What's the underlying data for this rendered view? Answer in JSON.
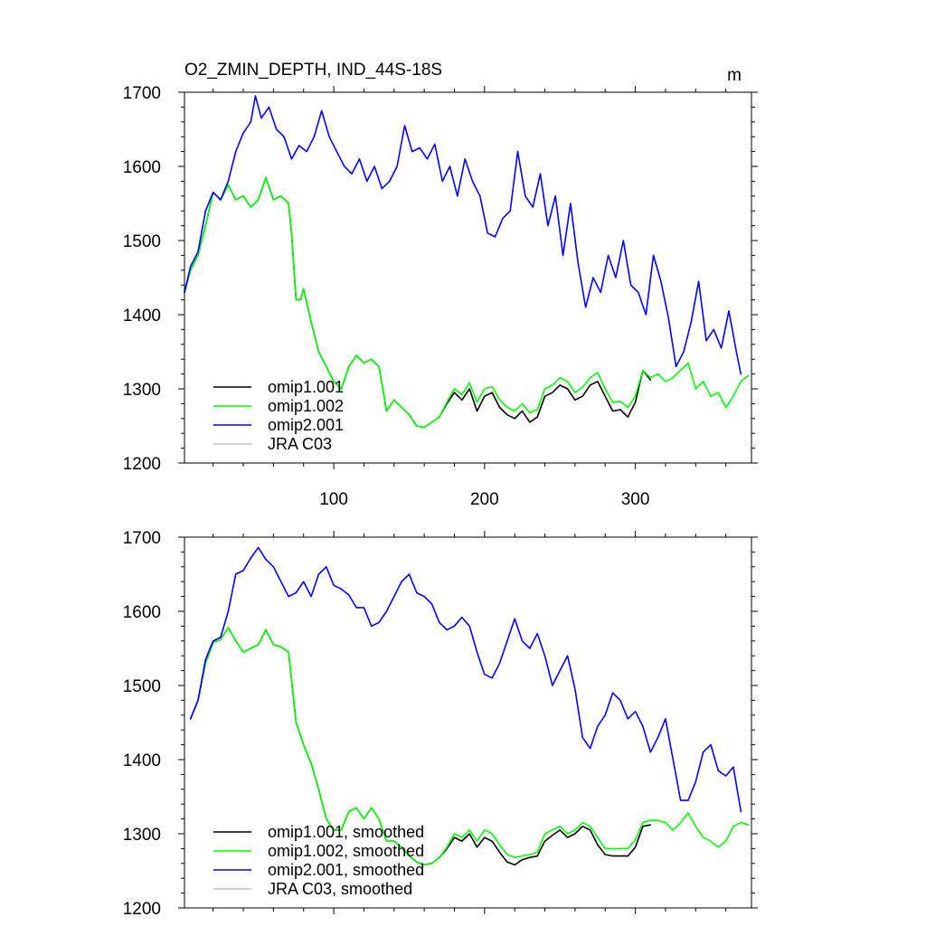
{
  "chart_data": [
    {
      "type": "line",
      "panel": "top",
      "title": "O2_ZMIN_DEPTH, IND_44S-18S",
      "units": "m",
      "xlabel": "",
      "ylabel": "",
      "xlim": [
        1,
        377
      ],
      "ylim": [
        1200,
        1700
      ],
      "xticks": [
        100,
        200,
        300
      ],
      "xtick_labels": [
        "100",
        "200",
        "300"
      ],
      "yticks": [
        1200,
        1300,
        1400,
        1500,
        1600,
        1700
      ],
      "ytick_labels": [
        "1200",
        "1300",
        "1400",
        "1500",
        "1600",
        "1700"
      ],
      "legend_position": "bottom-left",
      "series": [
        {
          "name": "omip1.001",
          "color": "#000000",
          "x": [
            1,
            5,
            10,
            15,
            20,
            25,
            30,
            35,
            40,
            45,
            50,
            55,
            60,
            65,
            70,
            72,
            75,
            78,
            80,
            85,
            90,
            95,
            100,
            105,
            110,
            115,
            120,
            125,
            130,
            135,
            140,
            145,
            150,
            155,
            160,
            165,
            170,
            175,
            180,
            185,
            190,
            195,
            200,
            205,
            210,
            215,
            220,
            225,
            230,
            235,
            240,
            245,
            250,
            255,
            260,
            265,
            270,
            275,
            280,
            285,
            290,
            295,
            300,
            305,
            310
          ],
          "y": [
            1430,
            1460,
            1480,
            1520,
            1565,
            1555,
            1575,
            1555,
            1560,
            1545,
            1555,
            1585,
            1555,
            1560,
            1550,
            1510,
            1420,
            1420,
            1435,
            1390,
            1350,
            1330,
            1310,
            1300,
            1330,
            1345,
            1335,
            1340,
            1330,
            1270,
            1285,
            1275,
            1265,
            1250,
            1248,
            1255,
            1262,
            1280,
            1295,
            1285,
            1300,
            1270,
            1290,
            1295,
            1275,
            1265,
            1260,
            1270,
            1255,
            1262,
            1290,
            1295,
            1305,
            1300,
            1285,
            1290,
            1305,
            1310,
            1290,
            1270,
            1272,
            1262,
            1282,
            1325,
            1312
          ]
        },
        {
          "name": "omip1.002",
          "color": "#00ff00",
          "x": [
            1,
            5,
            10,
            15,
            20,
            25,
            30,
            35,
            40,
            45,
            50,
            55,
            60,
            65,
            70,
            72,
            75,
            78,
            80,
            85,
            90,
            95,
            100,
            105,
            110,
            115,
            120,
            125,
            130,
            135,
            140,
            145,
            150,
            155,
            160,
            165,
            170,
            175,
            180,
            185,
            190,
            195,
            200,
            205,
            210,
            215,
            220,
            225,
            230,
            235,
            240,
            245,
            250,
            255,
            260,
            265,
            270,
            275,
            280,
            285,
            290,
            295,
            300,
            305,
            310,
            315,
            320,
            325,
            330,
            335,
            340,
            345,
            350,
            355,
            360,
            365,
            370,
            375
          ],
          "y": [
            1430,
            1460,
            1480,
            1520,
            1565,
            1555,
            1575,
            1555,
            1560,
            1545,
            1555,
            1585,
            1555,
            1560,
            1550,
            1510,
            1420,
            1420,
            1435,
            1390,
            1350,
            1330,
            1310,
            1300,
            1330,
            1345,
            1335,
            1340,
            1330,
            1270,
            1285,
            1275,
            1265,
            1250,
            1248,
            1255,
            1262,
            1282,
            1300,
            1292,
            1308,
            1282,
            1300,
            1303,
            1285,
            1275,
            1270,
            1280,
            1268,
            1272,
            1300,
            1305,
            1315,
            1310,
            1295,
            1302,
            1315,
            1322,
            1300,
            1282,
            1283,
            1275,
            1290,
            1325,
            1315,
            1320,
            1310,
            1315,
            1325,
            1335,
            1300,
            1310,
            1290,
            1295,
            1275,
            1290,
            1310,
            1318
          ]
        },
        {
          "name": "omip2.001",
          "color": "#0000ff",
          "x": [
            1,
            5,
            10,
            15,
            20,
            25,
            30,
            35,
            40,
            45,
            48,
            52,
            57,
            62,
            67,
            72,
            77,
            82,
            87,
            92,
            97,
            102,
            107,
            112,
            117,
            122,
            127,
            132,
            137,
            142,
            147,
            152,
            157,
            162,
            167,
            172,
            177,
            182,
            187,
            192,
            197,
            202,
            207,
            212,
            217,
            222,
            227,
            232,
            237,
            242,
            247,
            252,
            257,
            262,
            267,
            272,
            277,
            282,
            287,
            292,
            297,
            302,
            307,
            312,
            317,
            322,
            327,
            332,
            337,
            342,
            347,
            352,
            357,
            362,
            367,
            370
          ],
          "y": [
            1430,
            1465,
            1485,
            1540,
            1565,
            1555,
            1580,
            1620,
            1645,
            1660,
            1695,
            1665,
            1680,
            1650,
            1640,
            1610,
            1628,
            1620,
            1640,
            1675,
            1640,
            1620,
            1600,
            1590,
            1610,
            1580,
            1600,
            1570,
            1580,
            1600,
            1655,
            1620,
            1625,
            1610,
            1630,
            1580,
            1600,
            1560,
            1610,
            1580,
            1560,
            1510,
            1505,
            1530,
            1540,
            1620,
            1560,
            1545,
            1590,
            1520,
            1560,
            1480,
            1550,
            1470,
            1410,
            1450,
            1430,
            1480,
            1450,
            1500,
            1440,
            1430,
            1400,
            1480,
            1445,
            1395,
            1330,
            1350,
            1390,
            1445,
            1365,
            1380,
            1355,
            1405,
            1350,
            1320
          ]
        },
        {
          "name": "JRA C03",
          "color": "#c0c0c0",
          "x": [],
          "y": []
        }
      ]
    },
    {
      "type": "line",
      "panel": "bottom",
      "title": "",
      "xlabel": "",
      "ylabel": "",
      "xlim": [
        1,
        377
      ],
      "ylim": [
        1200,
        1700
      ],
      "xticks": [
        100,
        200,
        300
      ],
      "xtick_labels": [],
      "yticks": [
        1200,
        1300,
        1400,
        1500,
        1600,
        1700
      ],
      "ytick_labels": [
        "1200",
        "1300",
        "1400",
        "1500",
        "1600",
        "1700"
      ],
      "legend_position": "bottom-left",
      "series": [
        {
          "name": "omip1.001, smoothed",
          "color": "#000000",
          "x": [
            5,
            10,
            15,
            20,
            25,
            30,
            35,
            40,
            45,
            50,
            55,
            60,
            65,
            70,
            75,
            80,
            85,
            90,
            95,
            100,
            105,
            110,
            115,
            120,
            125,
            130,
            135,
            140,
            145,
            150,
            155,
            160,
            165,
            170,
            175,
            180,
            185,
            190,
            195,
            200,
            205,
            210,
            215,
            220,
            225,
            230,
            235,
            240,
            245,
            250,
            255,
            260,
            265,
            270,
            275,
            280,
            285,
            290,
            295,
            300,
            305,
            310
          ],
          "y": [
            1455,
            1480,
            1530,
            1558,
            1562,
            1578,
            1560,
            1545,
            1550,
            1555,
            1575,
            1555,
            1552,
            1545,
            1450,
            1420,
            1395,
            1360,
            1320,
            1305,
            1305,
            1330,
            1335,
            1320,
            1335,
            1320,
            1290,
            1290,
            1282,
            1270,
            1262,
            1258,
            1260,
            1268,
            1280,
            1295,
            1290,
            1300,
            1282,
            1295,
            1290,
            1275,
            1262,
            1258,
            1265,
            1268,
            1270,
            1290,
            1298,
            1305,
            1295,
            1300,
            1310,
            1305,
            1285,
            1272,
            1270,
            1270,
            1270,
            1282,
            1310,
            1312
          ]
        },
        {
          "name": "omip1.002, smoothed",
          "color": "#00ff00",
          "x": [
            5,
            10,
            15,
            20,
            25,
            30,
            35,
            40,
            45,
            50,
            55,
            60,
            65,
            70,
            75,
            80,
            85,
            90,
            95,
            100,
            105,
            110,
            115,
            120,
            125,
            130,
            135,
            140,
            145,
            150,
            155,
            160,
            165,
            170,
            175,
            180,
            185,
            190,
            195,
            200,
            205,
            210,
            215,
            220,
            225,
            230,
            235,
            240,
            245,
            250,
            255,
            260,
            265,
            270,
            275,
            280,
            285,
            290,
            295,
            300,
            305,
            310,
            315,
            320,
            325,
            330,
            335,
            340,
            345,
            350,
            355,
            360,
            365,
            370,
            375
          ],
          "y": [
            1455,
            1480,
            1530,
            1558,
            1562,
            1578,
            1560,
            1545,
            1550,
            1555,
            1575,
            1555,
            1552,
            1545,
            1450,
            1420,
            1395,
            1360,
            1320,
            1305,
            1305,
            1330,
            1335,
            1320,
            1335,
            1320,
            1290,
            1290,
            1282,
            1270,
            1262,
            1258,
            1260,
            1268,
            1282,
            1300,
            1295,
            1305,
            1290,
            1305,
            1300,
            1285,
            1272,
            1268,
            1270,
            1272,
            1275,
            1300,
            1305,
            1310,
            1300,
            1305,
            1315,
            1310,
            1295,
            1280,
            1280,
            1280,
            1280,
            1292,
            1315,
            1318,
            1318,
            1315,
            1305,
            1315,
            1328,
            1310,
            1295,
            1290,
            1282,
            1290,
            1310,
            1315,
            1312
          ]
        },
        {
          "name": "omip2.001, smoothed",
          "color": "#0000ff",
          "x": [
            5,
            10,
            15,
            20,
            25,
            30,
            35,
            40,
            45,
            50,
            55,
            60,
            65,
            70,
            75,
            80,
            85,
            90,
            95,
            100,
            105,
            110,
            115,
            120,
            125,
            130,
            135,
            140,
            145,
            150,
            155,
            160,
            165,
            170,
            175,
            180,
            185,
            190,
            195,
            200,
            205,
            210,
            215,
            220,
            225,
            230,
            235,
            240,
            245,
            250,
            255,
            260,
            265,
            270,
            275,
            280,
            285,
            290,
            295,
            300,
            305,
            310,
            315,
            320,
            325,
            330,
            335,
            340,
            345,
            350,
            355,
            360,
            365,
            370
          ],
          "y": [
            1455,
            1480,
            1535,
            1560,
            1565,
            1600,
            1650,
            1655,
            1672,
            1686,
            1670,
            1660,
            1640,
            1620,
            1625,
            1640,
            1620,
            1650,
            1660,
            1635,
            1630,
            1622,
            1605,
            1605,
            1580,
            1585,
            1600,
            1620,
            1640,
            1650,
            1625,
            1620,
            1610,
            1585,
            1575,
            1580,
            1592,
            1580,
            1545,
            1515,
            1510,
            1530,
            1560,
            1590,
            1560,
            1550,
            1570,
            1540,
            1500,
            1520,
            1540,
            1495,
            1430,
            1415,
            1445,
            1460,
            1490,
            1480,
            1455,
            1465,
            1445,
            1410,
            1430,
            1455,
            1400,
            1345,
            1345,
            1370,
            1410,
            1420,
            1385,
            1378,
            1390,
            1330
          ]
        },
        {
          "name": "JRA C03, smoothed",
          "color": "#c0c0c0",
          "x": [],
          "y": []
        }
      ]
    }
  ]
}
